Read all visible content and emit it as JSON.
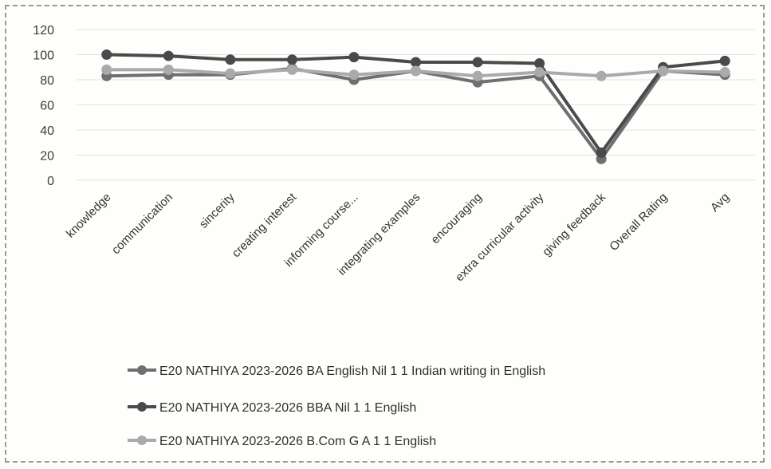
{
  "chart_data": {
    "type": "line",
    "title": "",
    "xlabel": "",
    "ylabel": "",
    "ylim": [
      0,
      120
    ],
    "yticks": [
      0,
      20,
      40,
      60,
      80,
      100,
      120
    ],
    "grid": true,
    "legend_position": "bottom",
    "categories": [
      "knowledge",
      "communication",
      "sincerity",
      "creating interest",
      "informing course...",
      "integrating examples",
      "encouraging",
      "extra curricular activity",
      "giving feedback",
      "Overall Rating",
      "Avg"
    ],
    "series": [
      {
        "name": "E20 NATHIYA  2023-2026 BA English Nil 1 1 Indian writing in English",
        "color": "#6f6f6f",
        "values": [
          83,
          84,
          84,
          89,
          80,
          87,
          78,
          83,
          17,
          87,
          84
        ]
      },
      {
        "name": "E20 NATHIYA  2023-2026 BBA Nil 1 1 English",
        "color": "#4a4a4a",
        "values": [
          100,
          99,
          96,
          96,
          98,
          94,
          94,
          93,
          22,
          90,
          95
        ]
      },
      {
        "name": "E20 NATHIYA  2023-2026 B.Com G A 1 1 English",
        "color": "#aaaaaa",
        "values": [
          88,
          88,
          85,
          88,
          84,
          87,
          83,
          86,
          83,
          87,
          86
        ]
      }
    ]
  }
}
